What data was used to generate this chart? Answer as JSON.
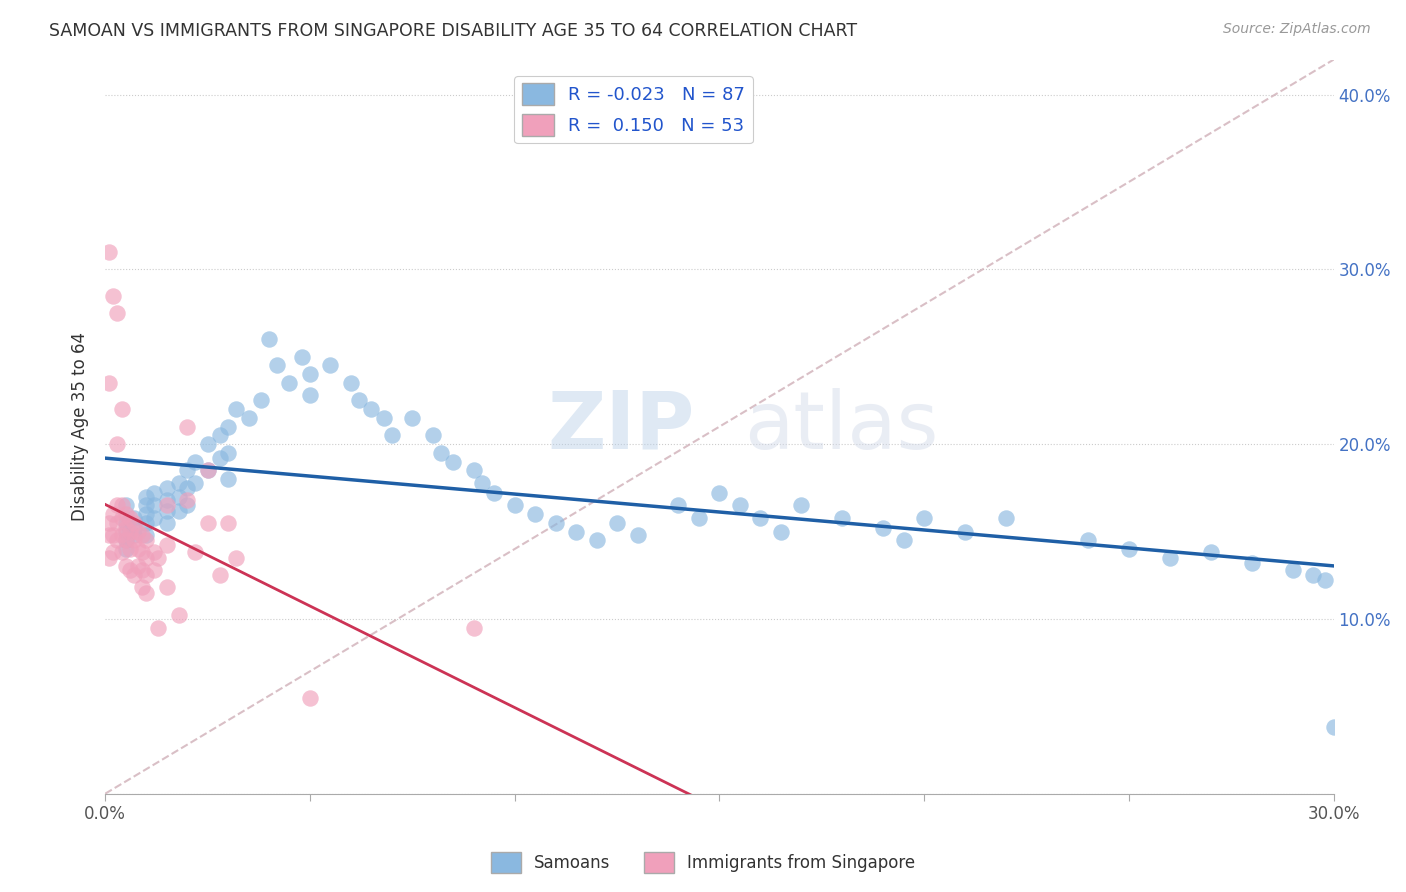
{
  "title": "SAMOAN VS IMMIGRANTS FROM SINGAPORE DISABILITY AGE 35 TO 64 CORRELATION CHART",
  "source": "Source: ZipAtlas.com",
  "ylabel": "Disability Age 35 to 64",
  "xlim": [
    0.0,
    0.3
  ],
  "ylim": [
    0.0,
    0.42
  ],
  "xticks": [
    0.0,
    0.05,
    0.1,
    0.15,
    0.2,
    0.25,
    0.3
  ],
  "xtick_labels": [
    "0.0%",
    "",
    "",
    "",
    "",
    "",
    "30.0%"
  ],
  "yticks": [
    0.0,
    0.1,
    0.2,
    0.3,
    0.4
  ],
  "ytick_labels_right": [
    "",
    "10.0%",
    "20.0%",
    "30.0%",
    "40.0%"
  ],
  "watermark": "ZIPatlas",
  "samoans_color": "#8ab8e0",
  "singapore_color": "#f0a0bb",
  "samoans_line_color": "#1f5fa6",
  "singapore_line_color": "#cc3355",
  "diagonal_color": "#d0b0b8",
  "samoans_x": [
    0.005,
    0.005,
    0.005,
    0.005,
    0.005,
    0.007,
    0.007,
    0.007,
    0.01,
    0.01,
    0.01,
    0.01,
    0.01,
    0.012,
    0.012,
    0.012,
    0.015,
    0.015,
    0.015,
    0.015,
    0.018,
    0.018,
    0.018,
    0.02,
    0.02,
    0.02,
    0.022,
    0.022,
    0.025,
    0.025,
    0.028,
    0.028,
    0.03,
    0.03,
    0.03,
    0.032,
    0.035,
    0.038,
    0.04,
    0.042,
    0.045,
    0.048,
    0.05,
    0.05,
    0.055,
    0.06,
    0.062,
    0.065,
    0.068,
    0.07,
    0.075,
    0.08,
    0.082,
    0.085,
    0.09,
    0.092,
    0.095,
    0.1,
    0.105,
    0.11,
    0.115,
    0.12,
    0.125,
    0.13,
    0.14,
    0.145,
    0.15,
    0.155,
    0.16,
    0.165,
    0.17,
    0.18,
    0.19,
    0.195,
    0.2,
    0.21,
    0.22,
    0.24,
    0.25,
    0.26,
    0.27,
    0.28,
    0.29,
    0.295,
    0.298,
    0.3
  ],
  "samoans_y": [
    0.165,
    0.155,
    0.15,
    0.145,
    0.14,
    0.158,
    0.152,
    0.148,
    0.17,
    0.165,
    0.16,
    0.155,
    0.148,
    0.172,
    0.165,
    0.158,
    0.175,
    0.168,
    0.162,
    0.155,
    0.178,
    0.17,
    0.162,
    0.185,
    0.175,
    0.165,
    0.19,
    0.178,
    0.2,
    0.185,
    0.205,
    0.192,
    0.21,
    0.195,
    0.18,
    0.22,
    0.215,
    0.225,
    0.26,
    0.245,
    0.235,
    0.25,
    0.24,
    0.228,
    0.245,
    0.235,
    0.225,
    0.22,
    0.215,
    0.205,
    0.215,
    0.205,
    0.195,
    0.19,
    0.185,
    0.178,
    0.172,
    0.165,
    0.16,
    0.155,
    0.15,
    0.145,
    0.155,
    0.148,
    0.165,
    0.158,
    0.172,
    0.165,
    0.158,
    0.15,
    0.165,
    0.158,
    0.152,
    0.145,
    0.158,
    0.15,
    0.158,
    0.145,
    0.14,
    0.135,
    0.138,
    0.132,
    0.128,
    0.125,
    0.122,
    0.038
  ],
  "singapore_x": [
    0.001,
    0.001,
    0.001,
    0.002,
    0.002,
    0.002,
    0.003,
    0.003,
    0.003,
    0.004,
    0.004,
    0.004,
    0.004,
    0.005,
    0.005,
    0.005,
    0.005,
    0.006,
    0.006,
    0.006,
    0.006,
    0.007,
    0.007,
    0.007,
    0.008,
    0.008,
    0.008,
    0.009,
    0.009,
    0.009,
    0.009,
    0.01,
    0.01,
    0.01,
    0.01,
    0.012,
    0.012,
    0.013,
    0.013,
    0.015,
    0.015,
    0.015,
    0.018,
    0.02,
    0.02,
    0.022,
    0.025,
    0.025,
    0.028,
    0.03,
    0.032,
    0.05,
    0.09
  ],
  "singapore_y": [
    0.155,
    0.148,
    0.135,
    0.16,
    0.148,
    0.138,
    0.165,
    0.155,
    0.145,
    0.165,
    0.158,
    0.148,
    0.138,
    0.16,
    0.152,
    0.145,
    0.13,
    0.158,
    0.15,
    0.14,
    0.128,
    0.155,
    0.145,
    0.125,
    0.15,
    0.14,
    0.13,
    0.148,
    0.138,
    0.128,
    0.118,
    0.145,
    0.135,
    0.125,
    0.115,
    0.138,
    0.128,
    0.135,
    0.095,
    0.165,
    0.142,
    0.118,
    0.102,
    0.21,
    0.168,
    0.138,
    0.185,
    0.155,
    0.125,
    0.155,
    0.135,
    0.055,
    0.095
  ],
  "singapore_outliers_x": [
    0.001,
    0.001,
    0.002,
    0.003,
    0.003,
    0.004
  ],
  "singapore_outliers_y": [
    0.31,
    0.235,
    0.285,
    0.275,
    0.2,
    0.22
  ]
}
